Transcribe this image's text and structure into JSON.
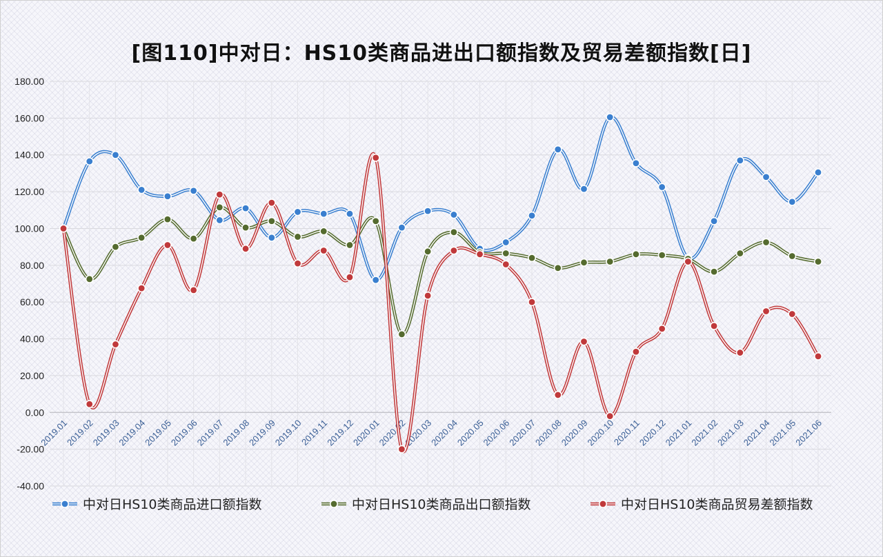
{
  "title": "[图110]中对日：HS10类商品进出口额指数及贸易差额指数[日]",
  "chart_data": {
    "type": "line",
    "title": "[图110]中对日：HS10类商品进出口额指数及贸易差额指数[日]",
    "xlabel": "",
    "ylabel": "",
    "ylim": [
      -40,
      180
    ],
    "ytick_step": 20,
    "ytick_labels": [
      "-40.00",
      "-20.00",
      "0.00",
      "20.00",
      "40.00",
      "60.00",
      "80.00",
      "100.00",
      "120.00",
      "140.00",
      "160.00",
      "180.00"
    ],
    "categories": [
      "2019.01",
      "2019.02",
      "2019.03",
      "2019.04",
      "2019.05",
      "2019.06",
      "2019.07",
      "2019.08",
      "2019.09",
      "2019.10",
      "2019.11",
      "2019.12",
      "2020.01",
      "2020.02",
      "2020.03",
      "2020.04",
      "2020.05",
      "2020.06",
      "2020.07",
      "2020.08",
      "2020.09",
      "2020.10",
      "2020.11",
      "2020.12",
      "2021.01",
      "2021.02",
      "2021.03",
      "2021.04",
      "2021.05",
      "2021.06"
    ],
    "grid": true,
    "legend_position": "bottom",
    "series": [
      {
        "name": "中对日HS10类商品进口额指数",
        "color": "#3a7fcf",
        "values": [
          100,
          136.5,
          140,
          121,
          117.5,
          120.5,
          104.5,
          111,
          95,
          109,
          108,
          108,
          72,
          100.5,
          109.5,
          107.5,
          89,
          92.5,
          107,
          143,
          121.5,
          160.5,
          135.5,
          122.5,
          84,
          104,
          137,
          128,
          114.5,
          130.5
        ]
      },
      {
        "name": "中对日HS10类商品出口额指数",
        "color": "#556b2f",
        "values": [
          100,
          72.5,
          90,
          95,
          105,
          94.5,
          111.5,
          100.5,
          104,
          95.5,
          98.5,
          91,
          104,
          42.5,
          87.5,
          98,
          87,
          86.5,
          84,
          78.5,
          81.5,
          82,
          86,
          85.5,
          83.5,
          76.5,
          86.5,
          92.5,
          85,
          82
        ]
      },
      {
        "name": "中对日HS10类商品贸易差额指数",
        "color": "#c0393b",
        "values": [
          100,
          4.5,
          37,
          67.5,
          91,
          66.5,
          118.5,
          89,
          114,
          81,
          88,
          73.5,
          138.5,
          -20,
          63.5,
          88,
          86,
          80.5,
          60,
          9.5,
          38.5,
          -2,
          33,
          45.5,
          82,
          47,
          32.5,
          55,
          53.5,
          30.5
        ]
      }
    ]
  }
}
